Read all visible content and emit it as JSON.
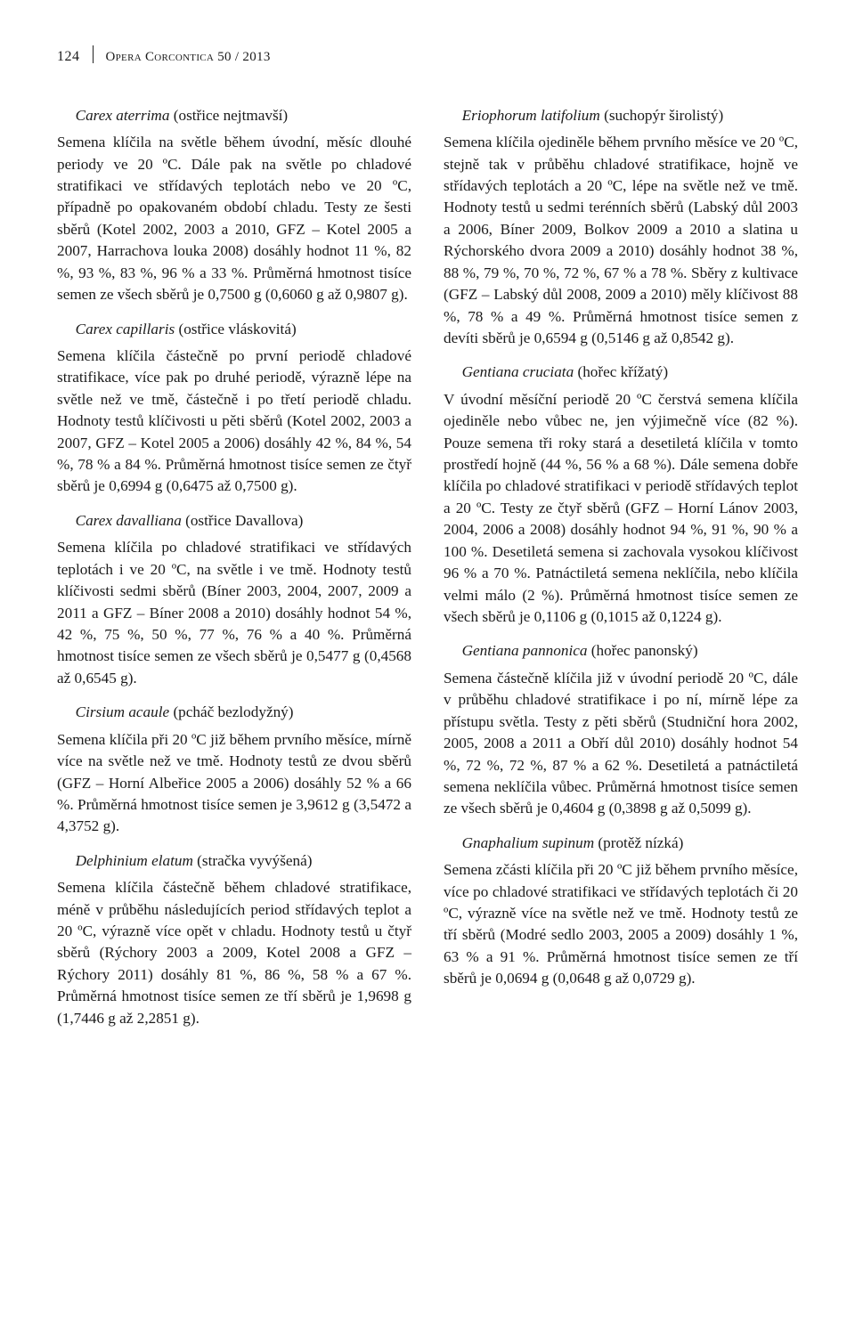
{
  "header": {
    "page_number": "124",
    "journal": "Opera Corcontica",
    "issue": "50 / 2013"
  },
  "left": {
    "s1_head_latin": "Carex aterrima",
    "s1_head_rest": " (ostřice nejtmavší)",
    "s1_para": "Semena klíčila na světle během úvodní, měsíc dlouhé periody ve 20 ºC. Dále pak na světle po chladové stratifikaci ve střídavých teplotách nebo ve 20 ºC, případně po opakovaném období chladu. Testy ze šesti sběrů (Kotel 2002, 2003 a 2010, GFZ – Kotel 2005 a 2007, Harrachova louka 2008) dosáhly hodnot 11 %, 82 %, 93 %, 83 %, 96 % a 33 %. Průměrná hmotnost tisíce semen ze všech sběrů je 0,7500 g (0,6060 g až 0,9807 g).",
    "s2_head_latin": "Carex capillaris",
    "s2_head_rest": " (ostřice vláskovitá)",
    "s2_para": "Semena klíčila částečně po první periodě chladové stratifikace, více pak po druhé periodě, výrazně lépe na světle než ve tmě, částečně i po třetí periodě chladu. Hodnoty testů klíčivosti u pěti sběrů (Kotel 2002, 2003 a 2007, GFZ – Kotel 2005 a 2006) dosáhly 42 %, 84 %, 54 %, 78 % a 84 %. Průměrná hmotnost tisíce semen ze čtyř sběrů je 0,6994 g (0,6475 až 0,7500 g).",
    "s3_head_latin": "Carex davalliana",
    "s3_head_rest": " (ostřice Davallova)",
    "s3_para": "Semena klíčila po chladové stratifikaci ve střídavých teplotách i ve 20 ºC, na světle i ve tmě. Hodnoty testů klíčivosti sedmi sběrů (Bíner 2003, 2004, 2007, 2009 a 2011 a GFZ – Bíner 2008 a 2010) dosáhly hodnot 54 %, 42 %, 75 %, 50 %, 77 %, 76 % a 40 %. Průměrná hmotnost tisíce semen ze všech sběrů je 0,5477 g (0,4568 až 0,6545 g).",
    "s4_head_latin": "Cirsium acaule",
    "s4_head_rest": " (pcháč bezlodyžný)",
    "s4_para": "Semena klíčila při 20 ºC již během prvního měsíce, mírně více na světle než ve tmě. Hodnoty testů ze dvou sběrů (GFZ – Horní Albeřice 2005 a 2006) dosáhly 52 % a 66 %. Průměrná hmotnost tisíce semen je 3,9612 g (3,5472 a 4,3752 g).",
    "s5_head_latin": "Delphinium elatum",
    "s5_head_rest": " (stračka vyvýšená)",
    "s5_para": "Semena klíčila částečně během chladové stratifikace, méně v průběhu následujících period střídavých teplot a 20 ºC, výrazně více opět v chladu. Hodnoty testů u čtyř sběrů (Rýchory 2003 a 2009, Kotel 2008 a GFZ – Rýchory 2011) dosáhly 81 %, 86 %, 58 % a 67 %. Průměrná hmotnost tisíce semen ze tří sběrů je 1,9698 g (1,7446 g až 2,2851 g)."
  },
  "right": {
    "s1_head_latin": "Eriophorum latifolium",
    "s1_head_rest": " (suchopýr širolistý)",
    "s1_para": "Semena klíčila ojediněle během prvního měsíce ve 20 ºC, stejně tak v průběhu chladové stratifikace, hojně ve střídavých teplotách a 20 ºC, lépe na světle než ve tmě. Hodnoty testů u sedmi terénních sběrů (Labský důl 2003 a 2006, Bíner 2009, Bolkov 2009 a 2010 a slatina u Rýchorského dvora 2009 a 2010) dosáhly hodnot 38 %, 88 %, 79 %, 70 %, 72 %, 67 % a 78 %. Sběry z kultivace (GFZ – Labský důl 2008, 2009 a 2010) měly klíčivost 88 %, 78 % a 49 %. Průměrná hmotnost tisíce semen z devíti sběrů je 0,6594 g (0,5146 g až 0,8542 g).",
    "s2_head_latin": "Gentiana cruciata",
    "s2_head_rest": " (hořec křížatý)",
    "s2_para": "V úvodní měsíční periodě 20 ºC čerstvá semena klíčila ojediněle nebo vůbec ne, jen výjimečně více (82 %). Pouze semena tři roky stará a desetiletá klíčila v tomto prostředí hojně (44 %, 56 % a 68 %). Dále semena dobře klíčila po chladové stratifikaci v periodě střídavých teplot a 20 ºC. Testy ze čtyř sběrů (GFZ – Horní Lánov 2003, 2004, 2006 a 2008) dosáhly hodnot 94 %, 91 %, 90 % a 100 %. Desetiletá semena si zachovala vysokou klíčivost 96 % a 70 %. Patnáctiletá semena neklíčila, nebo klíčila velmi málo (2 %). Průměrná hmotnost tisíce semen ze všech sběrů je 0,1106 g (0,1015 až 0,1224 g).",
    "s3_head_latin": "Gentiana pannonica",
    "s3_head_rest": " (hořec panonský)",
    "s3_para": "Semena částečně klíčila již v úvodní periodě 20 ºC, dále v průběhu chladové stratifikace i po ní, mírně lépe za přístupu světla. Testy z pěti sběrů (Studniční hora 2002, 2005, 2008 a 2011 a Obří důl 2010) dosáhly hodnot 54 %, 72 %, 72 %, 87 % a 62 %. Desetiletá a patnáctiletá semena neklíčila vůbec. Průměrná hmotnost tisíce semen ze všech sběrů je 0,4604 g (0,3898 g až 0,5099 g).",
    "s4_head_latin": "Gnaphalium supinum",
    "s4_head_rest": " (protěž nízká)",
    "s4_para": "Semena zčásti klíčila při 20 ºC již během prvního měsíce, více po chladové stratifikaci ve střídavých teplotách či 20 ºC, výrazně více na světle než ve tmě. Hodnoty testů ze tří sběrů (Modré sedlo 2003, 2005 a 2009) dosáhly 1 %, 63 % a 91 %. Průměrná hmotnost tisíce semen ze tří sběrů je 0,0694 g (0,0648 g až 0,0729 g)."
  }
}
